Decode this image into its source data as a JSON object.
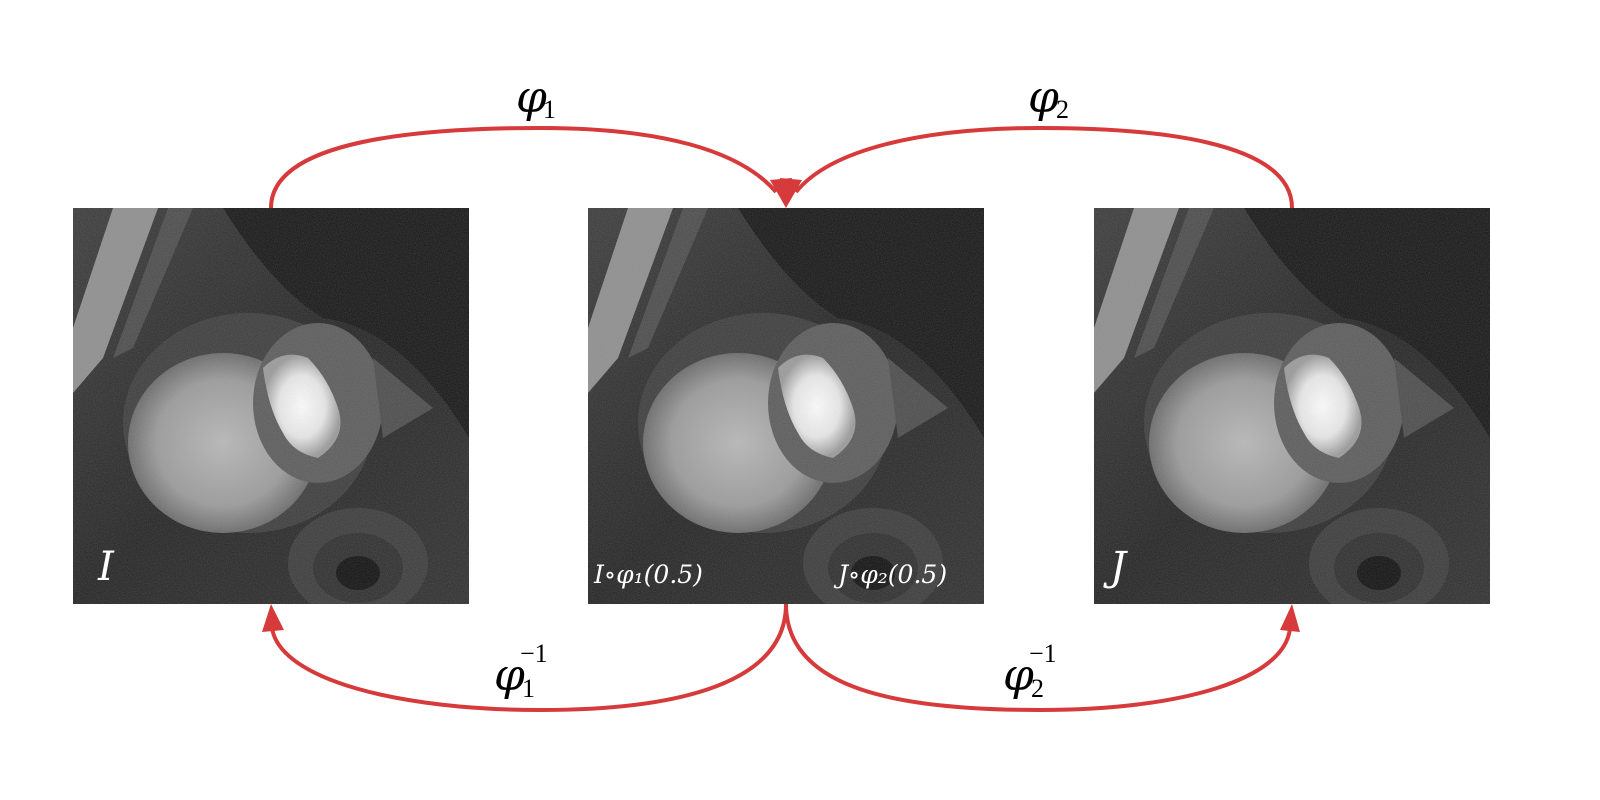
{
  "arrow_color": "#d63a3a",
  "panels": [
    {
      "id": "left",
      "label_main": "I",
      "content": "cardiac-mri-image"
    },
    {
      "id": "middle",
      "label_left": "I∘φ₁(0.5)",
      "label_right": "J∘φ₂(0.5)",
      "content": "cardiac-mri-image"
    },
    {
      "id": "right",
      "label_main": "J",
      "content": "cardiac-mri-image"
    }
  ],
  "arrows": {
    "phi1": {
      "base": "φ",
      "sub": "1",
      "sup": ""
    },
    "phi2": {
      "base": "φ",
      "sub": "2",
      "sup": ""
    },
    "phi1_inv": {
      "base": "φ",
      "sub": "1",
      "sup": "−1"
    },
    "phi2_inv": {
      "base": "φ",
      "sub": "2",
      "sup": "−1"
    }
  }
}
